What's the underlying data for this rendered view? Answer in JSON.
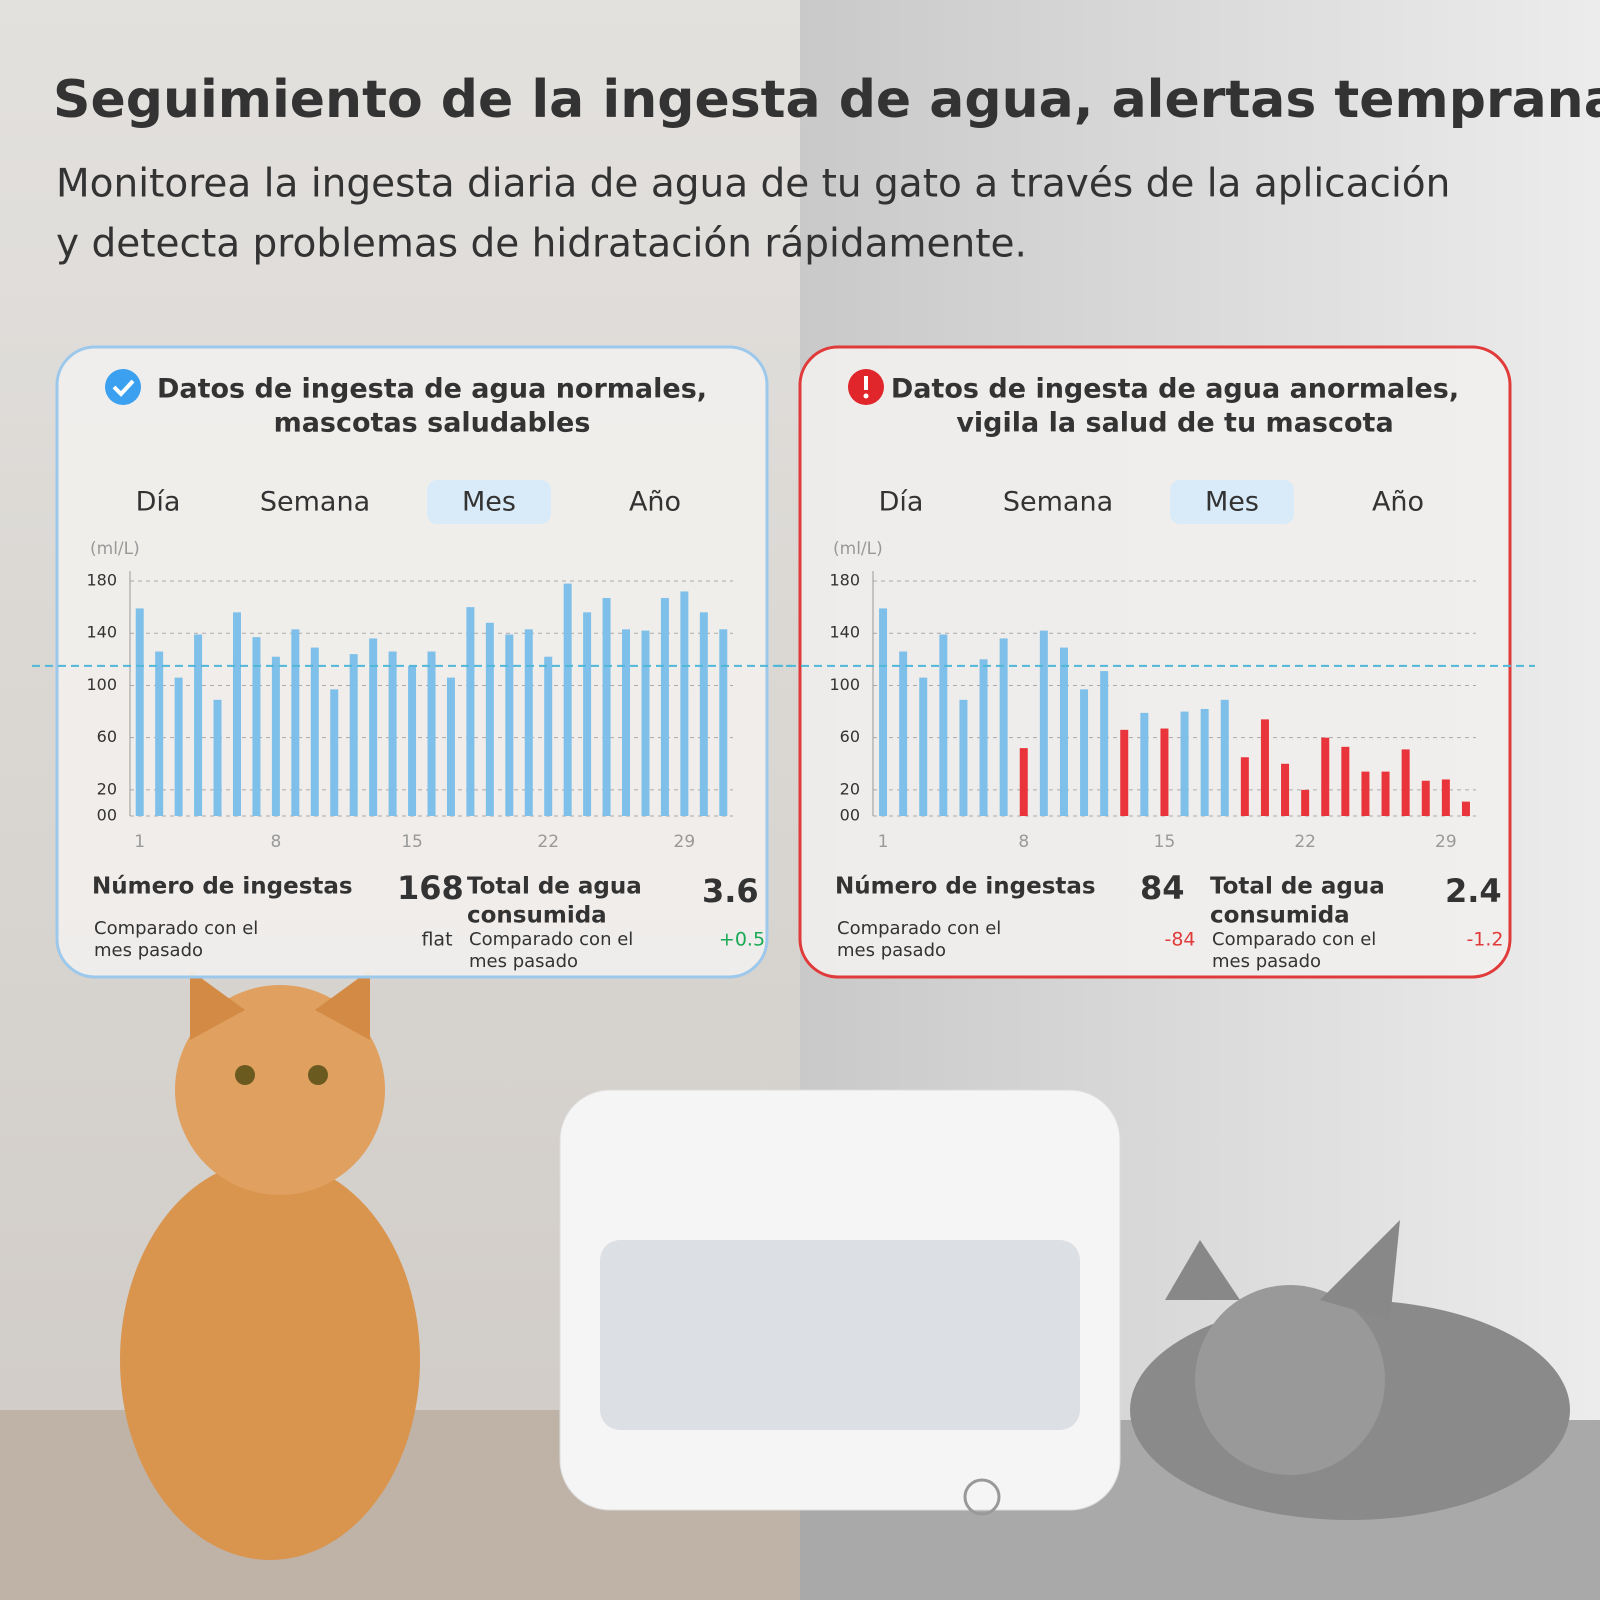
{
  "header": {
    "title": "Seguimiento de la ingesta de agua, alertas tempranas",
    "subtitle": [
      "Monitorea la ingesta diaria de agua de tu gato a través de la aplicación",
      "y detecta problemas de hidratación rápidamente."
    ]
  },
  "cards": [
    {
      "heading": [
        "Datos de ingesta de agua normales,",
        "mascotas saludables"
      ],
      "status": "ok",
      "color": "#9cc8ec",
      "tabs": [
        "Día",
        "Semana",
        "Mes",
        "Año"
      ],
      "selected_tab": 2,
      "stats": [
        {
          "label": [
            "Número de ingestas"
          ],
          "value": "168",
          "comparison": [
            "Comparado con el",
            "mes pasado"
          ],
          "delta": "flat",
          "delta_color": "#333333"
        },
        {
          "label": [
            "Total de agua",
            "consumida"
          ],
          "value": "3.6",
          "comparison": [
            "Comparado con el",
            "mes pasado"
          ],
          "delta": "+0.5",
          "delta_color": "#1aaa55"
        }
      ]
    },
    {
      "heading": [
        "Datos de ingesta de agua anormales,",
        "vigila la salud de tu mascota"
      ],
      "status": "alert",
      "color": "#e03a3a",
      "tabs": [
        "Día",
        "Semana",
        "Mes",
        "Año"
      ],
      "selected_tab": 2,
      "stats": [
        {
          "label": [
            "Número de ingestas"
          ],
          "value": "84",
          "comparison": [
            "Comparado con el",
            "mes pasado"
          ],
          "delta": "-84",
          "delta_color": "#e03a3a"
        },
        {
          "label": [
            "Total de agua",
            "consumida"
          ],
          "value": "2.4",
          "comparison": [
            "Comparado con el",
            "mes pasado"
          ],
          "delta": "-1.2",
          "delta_color": "#e03a3a"
        }
      ]
    }
  ],
  "chart_data": [
    {
      "type": "bar",
      "y_label": "(ml/L)",
      "categories": [
        "1",
        null,
        null,
        null,
        null,
        null,
        null,
        "8",
        null,
        null,
        null,
        null,
        null,
        null,
        "15",
        null,
        null,
        null,
        null,
        null,
        null,
        "22",
        null,
        null,
        null,
        null,
        null,
        null,
        "29",
        null,
        null
      ],
      "values": [
        159,
        126,
        106,
        139,
        89,
        156,
        137,
        122,
        143,
        129,
        97,
        124,
        136,
        126,
        115,
        126,
        106,
        160,
        148,
        139,
        143,
        122,
        178,
        156,
        167,
        143,
        142,
        167,
        172,
        156,
        143
      ],
      "bar_colors": [
        "#7fc0ea",
        "#7fc0ea",
        "#7fc0ea",
        "#7fc0ea",
        "#7fc0ea",
        "#7fc0ea",
        "#7fc0ea",
        "#7fc0ea",
        "#7fc0ea",
        "#7fc0ea",
        "#7fc0ea",
        "#7fc0ea",
        "#7fc0ea",
        "#7fc0ea",
        "#7fc0ea",
        "#7fc0ea",
        "#7fc0ea",
        "#7fc0ea",
        "#7fc0ea",
        "#7fc0ea",
        "#7fc0ea",
        "#7fc0ea",
        "#7fc0ea",
        "#7fc0ea",
        "#7fc0ea",
        "#7fc0ea",
        "#7fc0ea",
        "#7fc0ea",
        "#7fc0ea",
        "#7fc0ea",
        "#7fc0ea"
      ],
      "ylim": [
        0,
        180
      ],
      "yticks": [
        {
          "value": 0,
          "label": "00"
        },
        20,
        60,
        100,
        140,
        180
      ],
      "grid": true,
      "reference_line": 115,
      "reference_color": "#4fb7d8"
    },
    {
      "type": "bar",
      "y_label": "(ml/L)",
      "categories": [
        "1",
        null,
        null,
        null,
        null,
        null,
        null,
        "8",
        null,
        null,
        null,
        null,
        null,
        null,
        "15",
        null,
        null,
        null,
        null,
        null,
        null,
        "22",
        null,
        null,
        null,
        null,
        null,
        null,
        "29",
        null
      ],
      "values": [
        159,
        126,
        106,
        139,
        89,
        120,
        136,
        52,
        142,
        129,
        97,
        111,
        66,
        79,
        67,
        80,
        82,
        89,
        45,
        74,
        40,
        20,
        60,
        53,
        34,
        34,
        51,
        27,
        28,
        11
      ],
      "bar_colors": [
        "#7fc0ea",
        "#7fc0ea",
        "#7fc0ea",
        "#7fc0ea",
        "#7fc0ea",
        "#7fc0ea",
        "#7fc0ea",
        "#e8343a",
        "#7fc0ea",
        "#7fc0ea",
        "#7fc0ea",
        "#7fc0ea",
        "#e8343a",
        "#7fc0ea",
        "#e8343a",
        "#7fc0ea",
        "#7fc0ea",
        "#7fc0ea",
        "#e8343a",
        "#e8343a",
        "#e8343a",
        "#e8343a",
        "#e8343a",
        "#e8343a",
        "#e8343a",
        "#e8343a",
        "#e8343a",
        "#e8343a",
        "#e8343a",
        "#e8343a"
      ],
      "ylim": [
        0,
        180
      ],
      "yticks": [
        {
          "value": 0,
          "label": "00"
        },
        20,
        60,
        100,
        140,
        180
      ],
      "grid": true,
      "reference_line": 115,
      "reference_color": "#4fb7d8"
    }
  ]
}
